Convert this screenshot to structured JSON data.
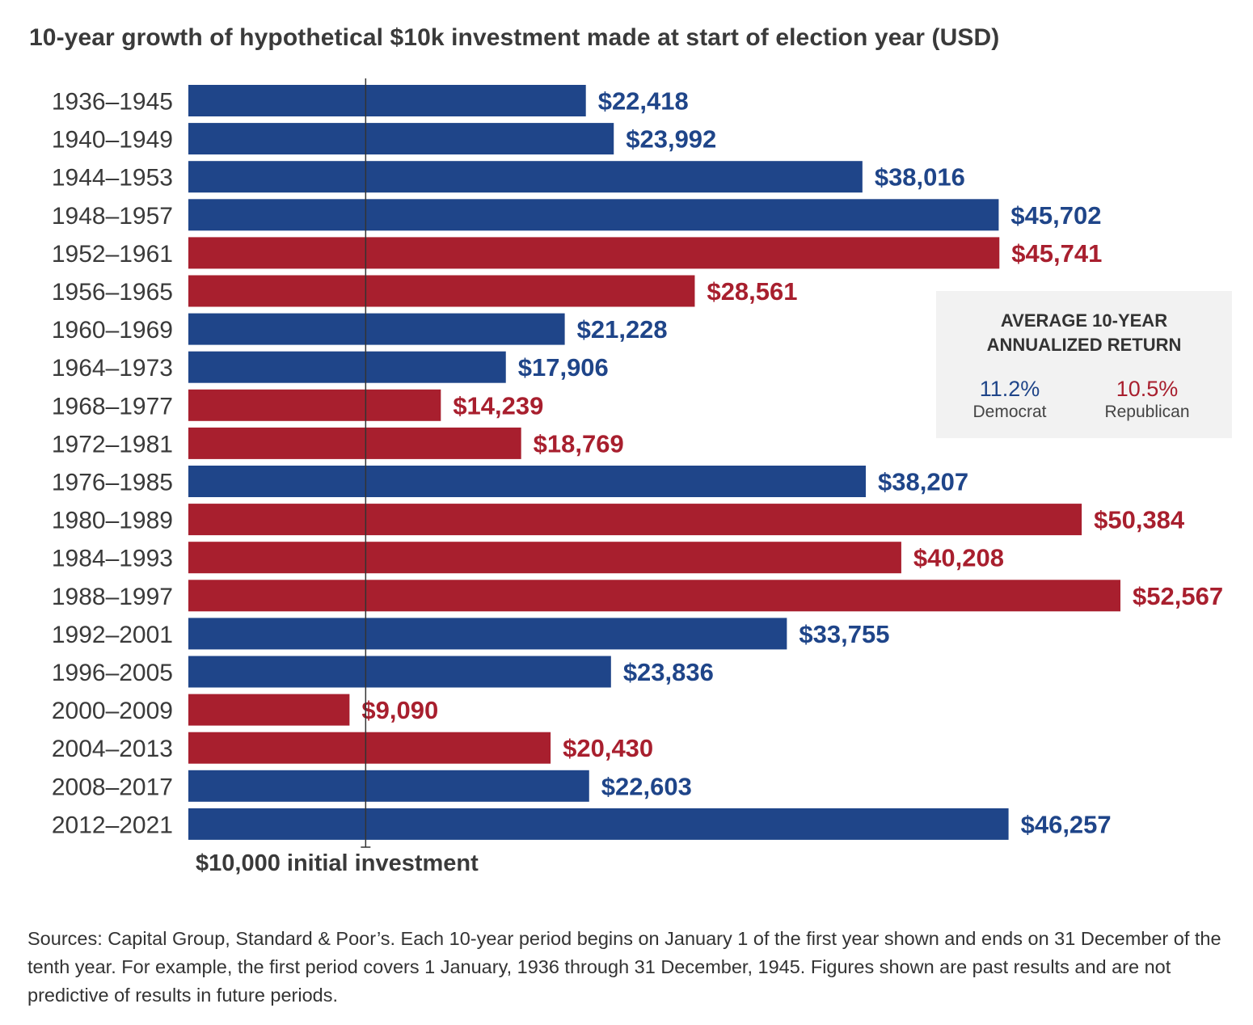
{
  "chart_data": {
    "type": "bar",
    "orientation": "horizontal",
    "title": "10-year growth of hypothetical $10k investment made at start of election year (USD)",
    "categories": [
      "1936–1945",
      "1940–1949",
      "1944–1953",
      "1948–1957",
      "1952–1961",
      "1956–1965",
      "1960–1969",
      "1964–1973",
      "1968–1977",
      "1972–1981",
      "1976–1985",
      "1980–1989",
      "1984–1993",
      "1988–1997",
      "1992–2001",
      "1996–2005",
      "2000–2009",
      "2004–2013",
      "2008–2017",
      "2012–2021"
    ],
    "values": [
      22418,
      23992,
      38016,
      45702,
      45741,
      28561,
      21228,
      17906,
      14239,
      18769,
      38207,
      50384,
      40208,
      52567,
      33755,
      23836,
      9090,
      20430,
      22603,
      46257
    ],
    "value_labels": [
      "$22,418",
      "$23,992",
      "$38,016",
      "$45,702",
      "$45,741",
      "$28,561",
      "$21,228",
      "$17,906",
      "$14,239",
      "$18,769",
      "$38,207",
      "$50,384",
      "$40,208",
      "$52,567",
      "$33,755",
      "$23,836",
      "$9,090",
      "$20,430",
      "$22,603",
      "$46,257"
    ],
    "party": [
      "D",
      "D",
      "D",
      "D",
      "R",
      "R",
      "D",
      "D",
      "R",
      "R",
      "D",
      "R",
      "R",
      "R",
      "D",
      "D",
      "R",
      "R",
      "D",
      "D"
    ],
    "colors": {
      "D": "#1f4589",
      "R": "#a81f2e"
    },
    "reference_line": {
      "value": 10000,
      "label": "$10,000 initial investment"
    },
    "xlim": [
      0,
      53000
    ],
    "grid": false
  },
  "summary_box": {
    "title_line1": "AVERAGE 10-YEAR",
    "title_line2": "ANNUALIZED RETURN",
    "democrat_value": "11.2%",
    "democrat_label": "Democrat",
    "republican_value": "10.5%",
    "republican_label": "Republican"
  },
  "footnote": "Sources: Capital Group, Standard & Poor’s. Each 10-year period begins on January 1 of the first year shown and ends on 31 December of the tenth year. For example, the first period covers 1 January, 1936 through 31 December, 1945. Figures shown are past results and are not predictive of results in future periods."
}
